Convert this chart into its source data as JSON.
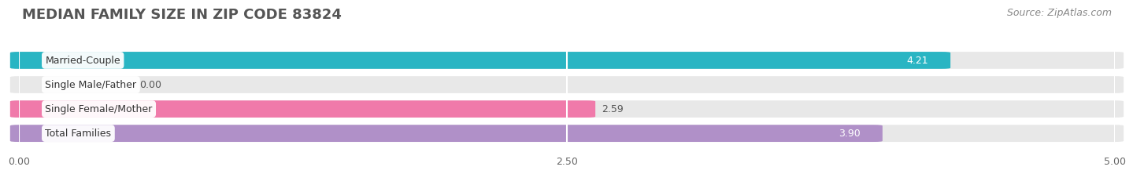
{
  "title": "MEDIAN FAMILY SIZE IN ZIP CODE 83824",
  "source": "Source: ZipAtlas.com",
  "categories": [
    "Married-Couple",
    "Single Male/Father",
    "Single Female/Mother",
    "Total Families"
  ],
  "values": [
    4.21,
    0.0,
    2.59,
    3.9
  ],
  "bar_colors": [
    "#29b5c3",
    "#a8b8e8",
    "#f07aaa",
    "#b090c8"
  ],
  "bar_bg_color": "#e8e8e8",
  "xlim": [
    0,
    5.0
  ],
  "xticks": [
    0.0,
    2.5,
    5.0
  ],
  "xtick_labels": [
    "0.00",
    "2.50",
    "5.00"
  ],
  "title_fontsize": 13,
  "source_fontsize": 9,
  "label_fontsize": 9,
  "value_fontsize": 9,
  "bar_height": 0.62,
  "background_color": "#ffffff",
  "value_colors": [
    "white",
    "#555555",
    "#555555",
    "white"
  ]
}
